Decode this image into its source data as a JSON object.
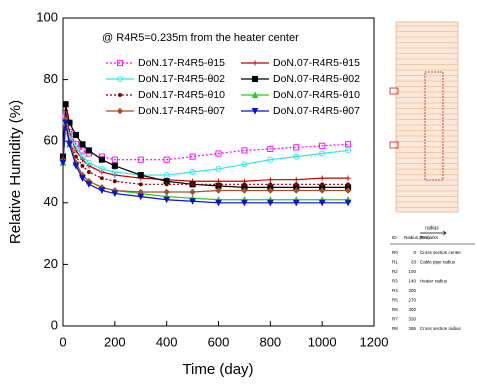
{
  "chart_data": {
    "type": "line",
    "annotation": "@ R4R5=0.235m from the heater center",
    "x_label": "Time (day)",
    "y_label": "Relative Humidity (%)",
    "x": [
      0,
      10,
      25,
      50,
      75,
      100,
      150,
      200,
      300,
      400,
      500,
      600,
      700,
      800,
      900,
      1000,
      1100
    ],
    "xlim": [
      0,
      1200
    ],
    "xticks": [
      0,
      200,
      400,
      600,
      800,
      1000,
      1200
    ],
    "ylim": [
      0,
      100
    ],
    "yticks": [
      0,
      20,
      40,
      60,
      80,
      100
    ],
    "legend_columns": 2,
    "series": [
      {
        "name": "DoN.17-R4R5-θ15",
        "color": "#ff00ff",
        "marker": "square",
        "dash": true,
        "values": [
          55,
          68,
          63,
          59,
          57,
          56,
          55,
          54,
          54,
          54,
          55,
          56,
          57,
          57.5,
          58,
          58.5,
          59
        ]
      },
      {
        "name": "DoN.07-R4R5-θ15",
        "color": "#c00000",
        "marker": "plus",
        "dash": false,
        "values": [
          55,
          70,
          63,
          57,
          54,
          52,
          50,
          49,
          48,
          47.5,
          47,
          47,
          47,
          47.5,
          47.5,
          48,
          48
        ]
      },
      {
        "name": "DoN.17-R4R5-θ02",
        "color": "#33e6e6",
        "marker": "circle",
        "dash": false,
        "values": [
          54,
          66,
          62,
          58,
          55,
          53,
          51,
          50,
          49,
          49,
          50,
          51,
          52.5,
          54,
          55,
          56,
          57
        ]
      },
      {
        "name": "DoN.07-R4R5-θ02",
        "color": "#000000",
        "marker": "square-filled",
        "dash": false,
        "values": [
          55,
          72,
          66,
          62,
          59,
          57,
          54,
          52,
          49,
          47,
          46,
          45.5,
          45,
          45,
          45,
          45,
          45
        ]
      },
      {
        "name": "DoN.17-R4R5-θ10",
        "color": "#800000",
        "marker": "dot",
        "dash": true,
        "values": [
          53,
          65,
          60,
          55,
          52,
          50,
          48,
          47,
          46,
          46,
          46,
          46,
          46,
          46,
          46,
          46,
          46
        ]
      },
      {
        "name": "DoN.07-R4R5-θ10",
        "color": "#22cc22",
        "marker": "triangle",
        "dash": false,
        "values": [
          53,
          66,
          59,
          53,
          49,
          47,
          45,
          44,
          43,
          42,
          41.5,
          41,
          41,
          41,
          41,
          41,
          41
        ]
      },
      {
        "name": "DoN.17-R4R5-θ07",
        "color": "#a0522d",
        "marker": "diamond",
        "dash": false,
        "values": [
          54,
          67,
          60,
          53,
          49,
          47,
          45,
          44,
          43.5,
          43.5,
          43.5,
          44,
          44,
          44,
          44,
          44,
          44
        ]
      },
      {
        "name": "DoN.07-R4R5-θ07",
        "color": "#1010d0",
        "marker": "triangle-down",
        "dash": false,
        "values": [
          53,
          66,
          59,
          52,
          48,
          46,
          44,
          43,
          42,
          41,
          40.5,
          40,
          40,
          40,
          40,
          40,
          40
        ]
      }
    ]
  },
  "inset": {
    "arrow_label": "radius",
    "header": [
      "ID",
      "Radius (mm)",
      "Remarks"
    ],
    "rows": [
      [
        "R0",
        0,
        "Cross section center"
      ],
      [
        "R1",
        33,
        "Cable pipe radius"
      ],
      [
        "R2",
        100,
        ""
      ],
      [
        "R3",
        140,
        "Heater radius"
      ],
      [
        "R4",
        200,
        ""
      ],
      [
        "R5",
        270,
        ""
      ],
      [
        "R6",
        300,
        ""
      ],
      [
        "R7",
        330,
        ""
      ],
      [
        "R8",
        395,
        "Cross section radius"
      ]
    ]
  }
}
